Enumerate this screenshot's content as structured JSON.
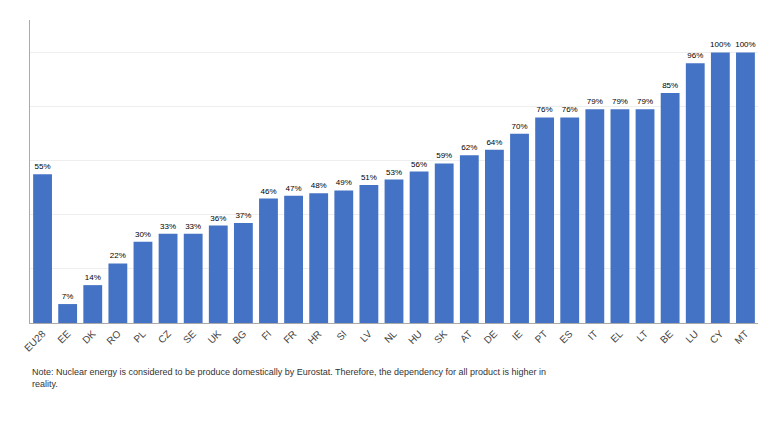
{
  "chart_data": {
    "type": "bar",
    "categories": [
      "EU28",
      "EE",
      "DK",
      "RO",
      "PL",
      "CZ",
      "SE",
      "UK",
      "BG",
      "FI",
      "FR",
      "HR",
      "SI",
      "LV",
      "NL",
      "HU",
      "SK",
      "AT",
      "DE",
      "IE",
      "PT",
      "ES",
      "IT",
      "EL",
      "LT",
      "BE",
      "LU",
      "CY",
      "MT"
    ],
    "values": [
      55,
      7,
      14,
      22,
      30,
      33,
      33,
      36,
      37,
      46,
      47,
      48,
      49,
      51,
      53,
      56,
      59,
      62,
      64,
      70,
      76,
      76,
      79,
      79,
      79,
      85,
      96,
      100,
      100
    ],
    "value_labels": [
      "55%",
      "7%",
      "14%",
      "22%",
      "30%",
      "33%",
      "33%",
      "36%",
      "37%",
      "46%",
      "47%",
      "48%",
      "49%",
      "51%",
      "53%",
      "56%",
      "59%",
      "62%",
      "64%",
      "70%",
      "76%",
      "76%",
      "79%",
      "79%",
      "79%",
      "85%",
      "96%",
      "100%",
      "100%"
    ],
    "data_labels": true,
    "color": "#4472C4",
    "ylim": [
      0,
      112
    ],
    "yticks": [
      0,
      20,
      40,
      60,
      80,
      100
    ],
    "grid": true,
    "tick_labels": "x",
    "annotations": [
      "Note: Nuclear energy is considered to be produce domestically by Eurostat. Therefore, the dependency for all product is higher in\nreality."
    ]
  }
}
